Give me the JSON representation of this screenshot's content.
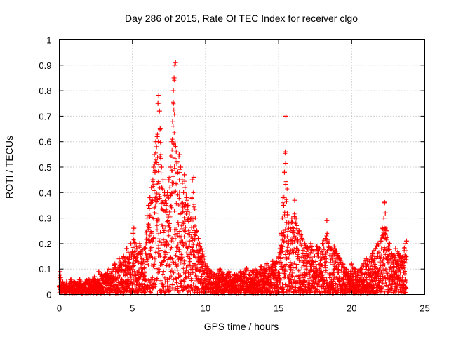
{
  "chart_data": {
    "type": "scatter",
    "title": "Day 286 of 2015, Rate Of TEC Index for receiver clgo",
    "xlabel": "GPS time / hours",
    "ylabel": "ROTI / TECUs",
    "xlim": [
      0,
      25
    ],
    "ylim": [
      0,
      1
    ],
    "xticks": [
      0,
      5,
      10,
      15,
      20,
      25
    ],
    "yticks": [
      0,
      0.1,
      0.2,
      0.3,
      0.4,
      0.5,
      0.6,
      0.7,
      0.8,
      0.9,
      1
    ],
    "grid": true,
    "marker": "+",
    "series": [
      {
        "name": "ROTI",
        "color": "#ff0000",
        "x": [
          0.0,
          0.05,
          0.1,
          0.15,
          0.2,
          0.3,
          0.4,
          0.5,
          0.6,
          0.7,
          0.8,
          0.9,
          1.0,
          1.2,
          1.4,
          1.6,
          1.8,
          2.0,
          2.2,
          2.4,
          2.6,
          2.7,
          2.8,
          3.0,
          3.2,
          3.4,
          3.6,
          3.8,
          4.0,
          4.1,
          4.2,
          4.4,
          4.5,
          4.6,
          4.8,
          4.9,
          5.0,
          5.05,
          5.1,
          5.2,
          5.3,
          5.4,
          5.5,
          5.6,
          5.8,
          6.0,
          6.1,
          6.2,
          6.3,
          6.35,
          6.4,
          6.45,
          6.5,
          6.55,
          6.6,
          6.65,
          6.7,
          6.75,
          6.8,
          6.85,
          6.9,
          6.95,
          7.0,
          7.1,
          7.2,
          7.3,
          7.4,
          7.5,
          7.6,
          7.7,
          7.75,
          7.8,
          7.85,
          7.9,
          7.95,
          8.0,
          8.05,
          8.1,
          8.2,
          8.3,
          8.4,
          8.5,
          8.55,
          8.6,
          8.7,
          8.8,
          8.9,
          9.0,
          9.1,
          9.2,
          9.3,
          9.4,
          9.5,
          9.6,
          9.7,
          9.8,
          9.9,
          10.0,
          10.2,
          10.4,
          10.6,
          10.8,
          11.0,
          11.2,
          11.4,
          11.6,
          11.8,
          12.0,
          12.2,
          12.4,
          12.6,
          12.8,
          13.0,
          13.2,
          13.4,
          13.6,
          13.8,
          14.0,
          14.2,
          14.4,
          14.6,
          14.8,
          15.0,
          15.1,
          15.2,
          15.25,
          15.3,
          15.35,
          15.4,
          15.45,
          15.5,
          15.6,
          15.7,
          15.8,
          15.9,
          16.0,
          16.1,
          16.2,
          16.4,
          16.6,
          16.8,
          17.0,
          17.2,
          17.4,
          17.6,
          17.8,
          18.0,
          18.2,
          18.3,
          18.4,
          18.6,
          18.8,
          19.0,
          19.2,
          19.4,
          19.6,
          19.8,
          20.0,
          20.2,
          20.4,
          20.6,
          20.8,
          21.0,
          21.2,
          21.4,
          21.6,
          21.8,
          22.0,
          22.1,
          22.2,
          22.25,
          22.3,
          22.4,
          22.6,
          22.8,
          23.0,
          23.2,
          23.4,
          23.6,
          23.7,
          23.75
        ],
        "y": [
          0.03,
          0.09,
          0.06,
          0.02,
          0.05,
          0.04,
          0.03,
          0.05,
          0.02,
          0.04,
          0.06,
          0.03,
          0.05,
          0.04,
          0.06,
          0.03,
          0.05,
          0.06,
          0.05,
          0.07,
          0.05,
          0.09,
          0.08,
          0.07,
          0.08,
          0.1,
          0.09,
          0.12,
          0.1,
          0.14,
          0.12,
          0.15,
          0.13,
          0.18,
          0.15,
          0.2,
          0.17,
          0.24,
          0.26,
          0.2,
          0.18,
          0.16,
          0.2,
          0.17,
          0.18,
          0.3,
          0.35,
          0.38,
          0.42,
          0.37,
          0.45,
          0.5,
          0.55,
          0.48,
          0.6,
          0.58,
          0.62,
          0.75,
          0.78,
          0.72,
          0.65,
          0.55,
          0.5,
          0.45,
          0.4,
          0.35,
          0.4,
          0.45,
          0.5,
          0.6,
          0.68,
          0.8,
          0.85,
          0.9,
          0.91,
          0.56,
          0.52,
          0.48,
          0.55,
          0.5,
          0.45,
          0.4,
          0.47,
          0.42,
          0.38,
          0.35,
          0.32,
          0.3,
          0.45,
          0.46,
          0.3,
          0.25,
          0.22,
          0.2,
          0.18,
          0.17,
          0.15,
          0.12,
          0.1,
          0.09,
          0.08,
          0.07,
          0.1,
          0.08,
          0.07,
          0.09,
          0.06,
          0.08,
          0.07,
          0.09,
          0.08,
          0.1,
          0.08,
          0.09,
          0.1,
          0.09,
          0.11,
          0.1,
          0.12,
          0.1,
          0.13,
          0.12,
          0.15,
          0.18,
          0.24,
          0.3,
          0.38,
          0.35,
          0.48,
          0.56,
          0.7,
          0.32,
          0.28,
          0.26,
          0.3,
          0.25,
          0.37,
          0.3,
          0.25,
          0.22,
          0.2,
          0.18,
          0.2,
          0.17,
          0.19,
          0.18,
          0.2,
          0.22,
          0.29,
          0.2,
          0.18,
          0.19,
          0.16,
          0.14,
          0.12,
          0.1,
          0.09,
          0.12,
          0.1,
          0.09,
          0.1,
          0.12,
          0.14,
          0.13,
          0.16,
          0.18,
          0.2,
          0.21,
          0.26,
          0.3,
          0.36,
          0.32,
          0.25,
          0.2,
          0.15,
          0.18,
          0.16,
          0.14,
          0.18,
          0.2,
          0.21
        ]
      }
    ]
  }
}
